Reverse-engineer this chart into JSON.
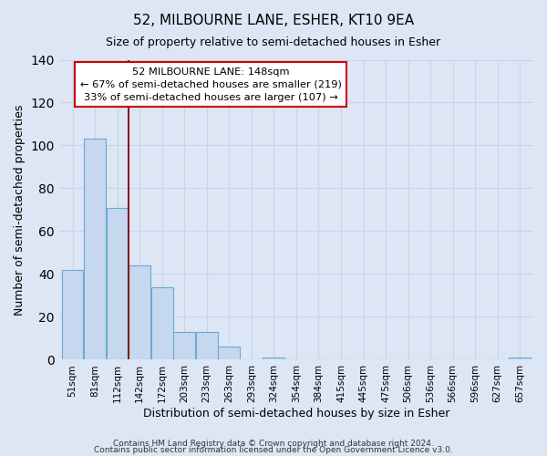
{
  "title": "52, MILBOURNE LANE, ESHER, KT10 9EA",
  "subtitle": "Size of property relative to semi-detached houses in Esher",
  "xlabel": "Distribution of semi-detached houses by size in Esher",
  "ylabel": "Number of semi-detached properties",
  "bin_labels": [
    "51sqm",
    "81sqm",
    "112sqm",
    "142sqm",
    "172sqm",
    "203sqm",
    "233sqm",
    "263sqm",
    "293sqm",
    "324sqm",
    "354sqm",
    "384sqm",
    "415sqm",
    "445sqm",
    "475sqm",
    "506sqm",
    "536sqm",
    "566sqm",
    "596sqm",
    "627sqm",
    "657sqm"
  ],
  "bar_values": [
    42,
    103,
    71,
    44,
    34,
    13,
    13,
    6,
    0,
    1,
    0,
    0,
    0,
    0,
    0,
    0,
    0,
    0,
    0,
    0,
    1
  ],
  "bar_color": "#c5d8ef",
  "bar_edge_color": "#6aaad4",
  "grid_color": "#c8d4e8",
  "background_color": "#dce6f5",
  "vline_color": "#8b1a1a",
  "annotation_title": "52 MILBOURNE LANE: 148sqm",
  "annotation_line1": "← 67% of semi-detached houses are smaller (219)",
  "annotation_line2": "33% of semi-detached houses are larger (107) →",
  "annotation_box_color": "#ffffff",
  "annotation_box_edge_color": "#cc0000",
  "ylim": [
    0,
    140
  ],
  "yticks": [
    0,
    20,
    40,
    60,
    80,
    100,
    120,
    140
  ],
  "footer1": "Contains HM Land Registry data © Crown copyright and database right 2024.",
  "footer2": "Contains public sector information licensed under the Open Government Licence v3.0."
}
